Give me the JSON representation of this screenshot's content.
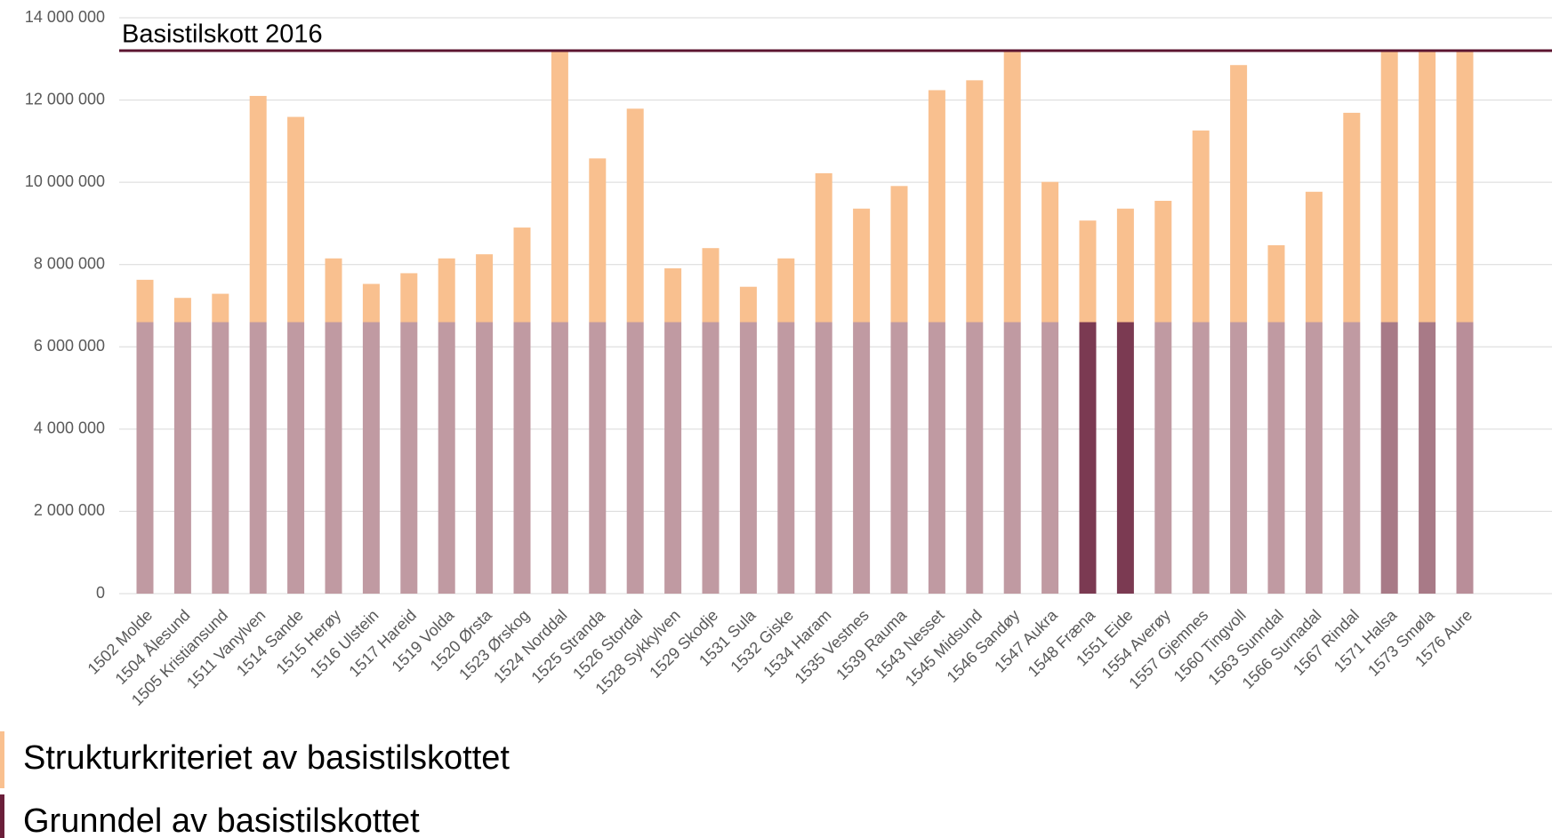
{
  "chart_data": {
    "type": "stacked_bar",
    "categories": [
      "1502 Molde",
      "1504 Ålesund",
      "1505 Kristiansund",
      "1511 Vanylven",
      "1514 Sande",
      "1515 Herøy",
      "1516 Ulstein",
      "1517 Hareid",
      "1519 Volda",
      "1520 Ørsta",
      "1523 Ørskog",
      "1524 Norddal",
      "1525 Stranda",
      "1526 Stordal",
      "1528 Sykkylven",
      "1529 Skodje",
      "1531 Sula",
      "1532 Giske",
      "1534 Haram",
      "1535 Vestnes",
      "1539 Rauma",
      "1543 Nesset",
      "1545 Midsund",
      "1546 Sandøy",
      "1547 Aukra",
      "1548 Fræna",
      "1551 Eide",
      "1554 Averøy",
      "1557 Gjemnes",
      "1560 Tingvoll",
      "1563 Sunndal",
      "1566 Surnadal",
      "1567 Rindal",
      "1571 Halsa",
      "1573 Smøla",
      "1576 Aure"
    ],
    "series": [
      {
        "name": "Grunndel av basistilskottet",
        "color": "#6b1f3a",
        "colors": [
          "#c09aa2",
          "#c09aa2",
          "#c09aa2",
          "#c09aa2",
          "#c09aa2",
          "#c09aa2",
          "#c09aa2",
          "#c09aa2",
          "#c09aa2",
          "#c09aa2",
          "#c09aa2",
          "#c09aa2",
          "#c09aa2",
          "#c09aa2",
          "#c09aa2",
          "#c09aa2",
          "#c09aa2",
          "#c09aa2",
          "#c09aa2",
          "#c09aa2",
          "#c09aa2",
          "#c09aa2",
          "#c09aa2",
          "#c09aa2",
          "#c09aa2",
          "#7b3a52",
          "#7b3a52",
          "#c09aa2",
          "#c09aa2",
          "#c09aa2",
          "#c09aa2",
          "#c09aa2",
          "#c09aa2",
          "#a87a87",
          "#a87a87",
          "#b98e99"
        ],
        "values": [
          6600000,
          6600000,
          6600000,
          6600000,
          6600000,
          6600000,
          6600000,
          6600000,
          6600000,
          6600000,
          6600000,
          6600000,
          6600000,
          6600000,
          6600000,
          6600000,
          6600000,
          6600000,
          6600000,
          6600000,
          6600000,
          6600000,
          6600000,
          6600000,
          6600000,
          6600000,
          6600000,
          6600000,
          6600000,
          6600000,
          6600000,
          6600000,
          6600000,
          6600000,
          6600000,
          6600000
        ]
      },
      {
        "name": "Strukturkriteriet av basistilskottet",
        "color": "#f9c08f",
        "values": [
          1030000,
          590000,
          690000,
          5500000,
          4990000,
          1550000,
          930000,
          1190000,
          1550000,
          1650000,
          2300000,
          6600000,
          3980000,
          5190000,
          1310000,
          1800000,
          860000,
          1550000,
          3620000,
          2760000,
          3310000,
          5640000,
          5880000,
          6600000,
          3410000,
          2470000,
          2760000,
          2950000,
          4660000,
          6250000,
          1870000,
          3170000,
          5090000,
          6600000,
          6600000,
          6600000
        ]
      }
    ],
    "reference_line": {
      "value": 13200000,
      "label": "Basistilskott 2016",
      "color": "#5c1530"
    },
    "ylim": [
      0,
      14000000
    ],
    "yticks": [
      {
        "value": 0,
        "label": "0"
      },
      {
        "value": 2000000,
        "label": "2 000 000"
      },
      {
        "value": 4000000,
        "label": "4 000 000"
      },
      {
        "value": 6000000,
        "label": "6 000 000"
      },
      {
        "value": 8000000,
        "label": "8 000 000"
      },
      {
        "value": 10000000,
        "label": "10 000 000"
      },
      {
        "value": 12000000,
        "label": "12 000 000"
      },
      {
        "value": 14000000,
        "label": "14 000 000"
      }
    ],
    "grid": true
  }
}
